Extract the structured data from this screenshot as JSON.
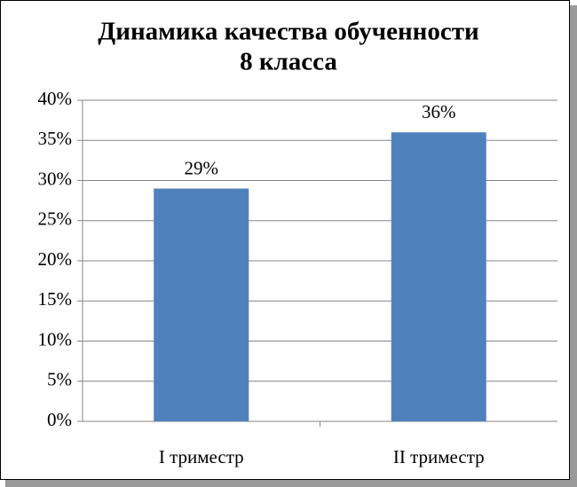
{
  "chart_data": {
    "type": "bar",
    "title": [
      "Динамика качества обученности",
      "8 класса"
    ],
    "categories": [
      "I триместр",
      "II триместр"
    ],
    "values": [
      29,
      36
    ],
    "value_labels": [
      "29%",
      "36%"
    ],
    "color": "#4f81bd",
    "ylim": [
      0,
      40
    ],
    "yticks": [
      {
        "value": 0,
        "label": "0%"
      },
      {
        "value": 5,
        "label": "5%"
      },
      {
        "value": 10,
        "label": "10%"
      },
      {
        "value": 15,
        "label": "15%"
      },
      {
        "value": 20,
        "label": "20%"
      },
      {
        "value": 25,
        "label": "25%"
      },
      {
        "value": 30,
        "label": "30%"
      },
      {
        "value": 35,
        "label": "35%"
      },
      {
        "value": 40,
        "label": "40%"
      }
    ],
    "grid": true
  }
}
